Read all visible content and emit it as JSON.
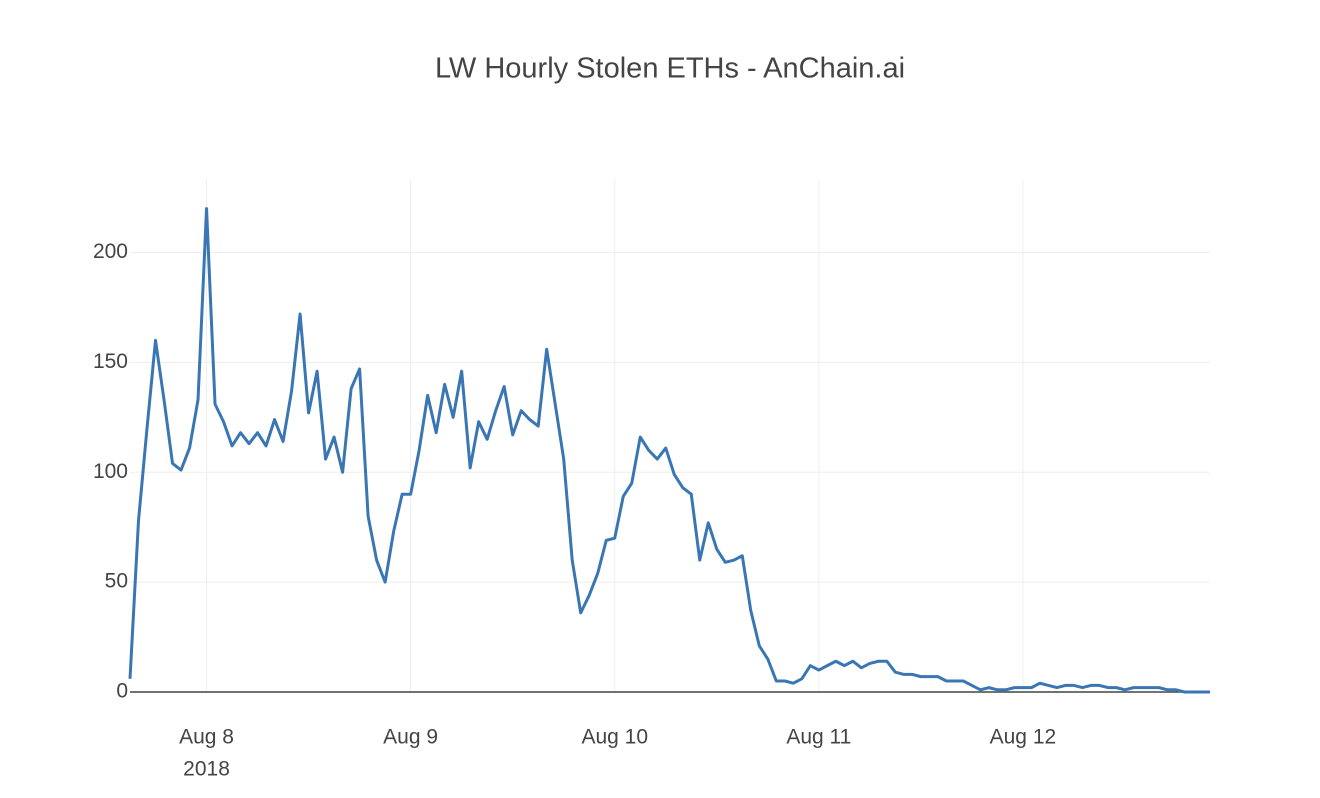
{
  "chart_data": {
    "type": "line",
    "title": "LW Hourly Stolen ETHs - AnChain.ai",
    "x": [
      "2018-08-07 15:00",
      "2018-08-07 16:00",
      "2018-08-07 17:00",
      "2018-08-07 18:00",
      "2018-08-07 19:00",
      "2018-08-07 20:00",
      "2018-08-07 21:00",
      "2018-08-07 22:00",
      "2018-08-07 23:00",
      "2018-08-08 00:00",
      "2018-08-08 01:00",
      "2018-08-08 02:00",
      "2018-08-08 03:00",
      "2018-08-08 04:00",
      "2018-08-08 05:00",
      "2018-08-08 06:00",
      "2018-08-08 07:00",
      "2018-08-08 08:00",
      "2018-08-08 09:00",
      "2018-08-08 10:00",
      "2018-08-08 11:00",
      "2018-08-08 12:00",
      "2018-08-08 13:00",
      "2018-08-08 14:00",
      "2018-08-08 15:00",
      "2018-08-08 16:00",
      "2018-08-08 17:00",
      "2018-08-08 18:00",
      "2018-08-08 19:00",
      "2018-08-08 20:00",
      "2018-08-08 21:00",
      "2018-08-08 22:00",
      "2018-08-08 23:00",
      "2018-08-09 00:00",
      "2018-08-09 01:00",
      "2018-08-09 02:00",
      "2018-08-09 03:00",
      "2018-08-09 04:00",
      "2018-08-09 05:00",
      "2018-08-09 06:00",
      "2018-08-09 07:00",
      "2018-08-09 08:00",
      "2018-08-09 09:00",
      "2018-08-09 10:00",
      "2018-08-09 11:00",
      "2018-08-09 12:00",
      "2018-08-09 13:00",
      "2018-08-09 14:00",
      "2018-08-09 15:00",
      "2018-08-09 16:00",
      "2018-08-09 17:00",
      "2018-08-09 18:00",
      "2018-08-09 19:00",
      "2018-08-09 20:00",
      "2018-08-09 21:00",
      "2018-08-09 22:00",
      "2018-08-09 23:00",
      "2018-08-10 00:00",
      "2018-08-10 01:00",
      "2018-08-10 02:00",
      "2018-08-10 03:00",
      "2018-08-10 04:00",
      "2018-08-10 05:00",
      "2018-08-10 06:00",
      "2018-08-10 07:00",
      "2018-08-10 08:00",
      "2018-08-10 09:00",
      "2018-08-10 10:00",
      "2018-08-10 11:00",
      "2018-08-10 12:00",
      "2018-08-10 13:00",
      "2018-08-10 14:00",
      "2018-08-10 15:00",
      "2018-08-10 16:00",
      "2018-08-10 17:00",
      "2018-08-10 18:00",
      "2018-08-10 19:00",
      "2018-08-10 20:00",
      "2018-08-10 21:00",
      "2018-08-10 22:00",
      "2018-08-10 23:00",
      "2018-08-11 00:00",
      "2018-08-11 01:00",
      "2018-08-11 02:00",
      "2018-08-11 03:00",
      "2018-08-11 04:00",
      "2018-08-11 05:00",
      "2018-08-11 06:00",
      "2018-08-11 07:00",
      "2018-08-11 08:00",
      "2018-08-11 09:00",
      "2018-08-11 10:00",
      "2018-08-11 11:00",
      "2018-08-11 12:00",
      "2018-08-11 13:00",
      "2018-08-11 14:00",
      "2018-08-11 15:00",
      "2018-08-11 16:00",
      "2018-08-11 17:00",
      "2018-08-11 18:00",
      "2018-08-11 19:00",
      "2018-08-11 20:00",
      "2018-08-11 21:00",
      "2018-08-11 22:00",
      "2018-08-11 23:00",
      "2018-08-12 00:00",
      "2018-08-12 01:00",
      "2018-08-12 02:00",
      "2018-08-12 03:00",
      "2018-08-12 04:00",
      "2018-08-12 05:00",
      "2018-08-12 06:00",
      "2018-08-12 07:00",
      "2018-08-12 08:00",
      "2018-08-12 09:00",
      "2018-08-12 10:00",
      "2018-08-12 11:00",
      "2018-08-12 12:00",
      "2018-08-12 13:00",
      "2018-08-12 14:00",
      "2018-08-12 15:00",
      "2018-08-12 16:00",
      "2018-08-12 17:00",
      "2018-08-12 18:00",
      "2018-08-12 19:00",
      "2018-08-12 20:00",
      "2018-08-12 21:00",
      "2018-08-12 22:00"
    ],
    "values": [
      6,
      78,
      120,
      160,
      133,
      104,
      101,
      111,
      133,
      220,
      131,
      123,
      112,
      118,
      113,
      118,
      112,
      124,
      114,
      137,
      172,
      127,
      146,
      106,
      116,
      100,
      138,
      147,
      80,
      60,
      50,
      73,
      90,
      90,
      110,
      135,
      118,
      140,
      125,
      146,
      102,
      123,
      115,
      128,
      139,
      117,
      128,
      124,
      121,
      156,
      131,
      106,
      60,
      36,
      44,
      54,
      69,
      70,
      89,
      95,
      116,
      110,
      106,
      111,
      99,
      93,
      90,
      60,
      77,
      65,
      59,
      60,
      62,
      37,
      21,
      15,
      5,
      5,
      4,
      6,
      12,
      10,
      12,
      14,
      12,
      14,
      11,
      13,
      14,
      14,
      9,
      8,
      8,
      7,
      7,
      7,
      5,
      5,
      5,
      3,
      1,
      2,
      1,
      1,
      2,
      2,
      2,
      4,
      3,
      2,
      3,
      3,
      2,
      3,
      3,
      2,
      2,
      1,
      2,
      2,
      2,
      2,
      1,
      1,
      0,
      0,
      0,
      0
    ],
    "color": "#3a76b4",
    "xlim": [
      "2018-08-07 15:00",
      "2018-08-12 22:00"
    ],
    "xticks": [
      {
        "value": "2018-08-08 00:00",
        "label": "Aug 8",
        "sublabel": "2018"
      },
      {
        "value": "2018-08-09 00:00",
        "label": "Aug 9"
      },
      {
        "value": "2018-08-10 00:00",
        "label": "Aug 10"
      },
      {
        "value": "2018-08-11 00:00",
        "label": "Aug 11"
      },
      {
        "value": "2018-08-12 00:00",
        "label": "Aug 12"
      }
    ],
    "ylim": [
      0,
      233
    ],
    "yticks": [
      0,
      50,
      100,
      150,
      200
    ],
    "grid": true
  }
}
